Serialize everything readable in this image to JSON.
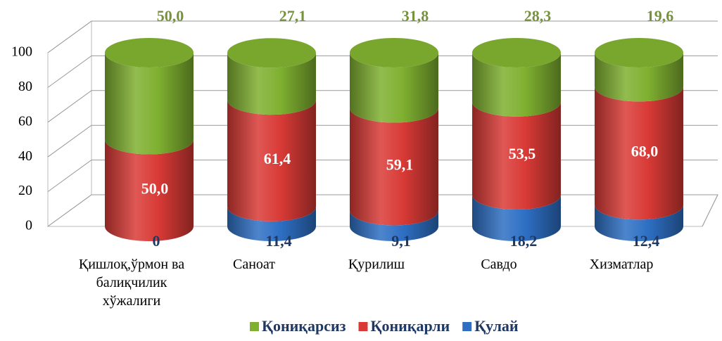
{
  "chart_data": {
    "type": "bar",
    "stacked": true,
    "categories": [
      "Қишлоқ,ўрмон ва балиқчилик хўжалиги",
      "Саноат",
      "Қурилиш",
      "Савдо",
      "Хизматлар"
    ],
    "series": [
      {
        "name": "Қулай",
        "color": "#2e6fc4",
        "values": [
          0,
          11.4,
          9.1,
          18.2,
          12.4
        ],
        "value_labels": [
          "0",
          "11,4",
          "9,1",
          "18,2",
          "12,4"
        ]
      },
      {
        "name": "Қониқарли",
        "color": "#d93a36",
        "values": [
          50.0,
          61.4,
          59.1,
          53.5,
          68.0
        ],
        "value_labels": [
          "50,0",
          "61,4",
          "59,1",
          "53,5",
          "68,0"
        ]
      },
      {
        "name": "Қониқарсиз",
        "color": "#7fb030",
        "values": [
          50.0,
          27.1,
          31.8,
          28.3,
          19.6
        ],
        "value_labels": [
          "50,0",
          "27,1",
          "31,8",
          "28,3",
          "19,6"
        ]
      }
    ],
    "ylim": [
      0,
      100
    ],
    "yticks": [
      0,
      20,
      40,
      60,
      80,
      100
    ],
    "grid": true
  }
}
